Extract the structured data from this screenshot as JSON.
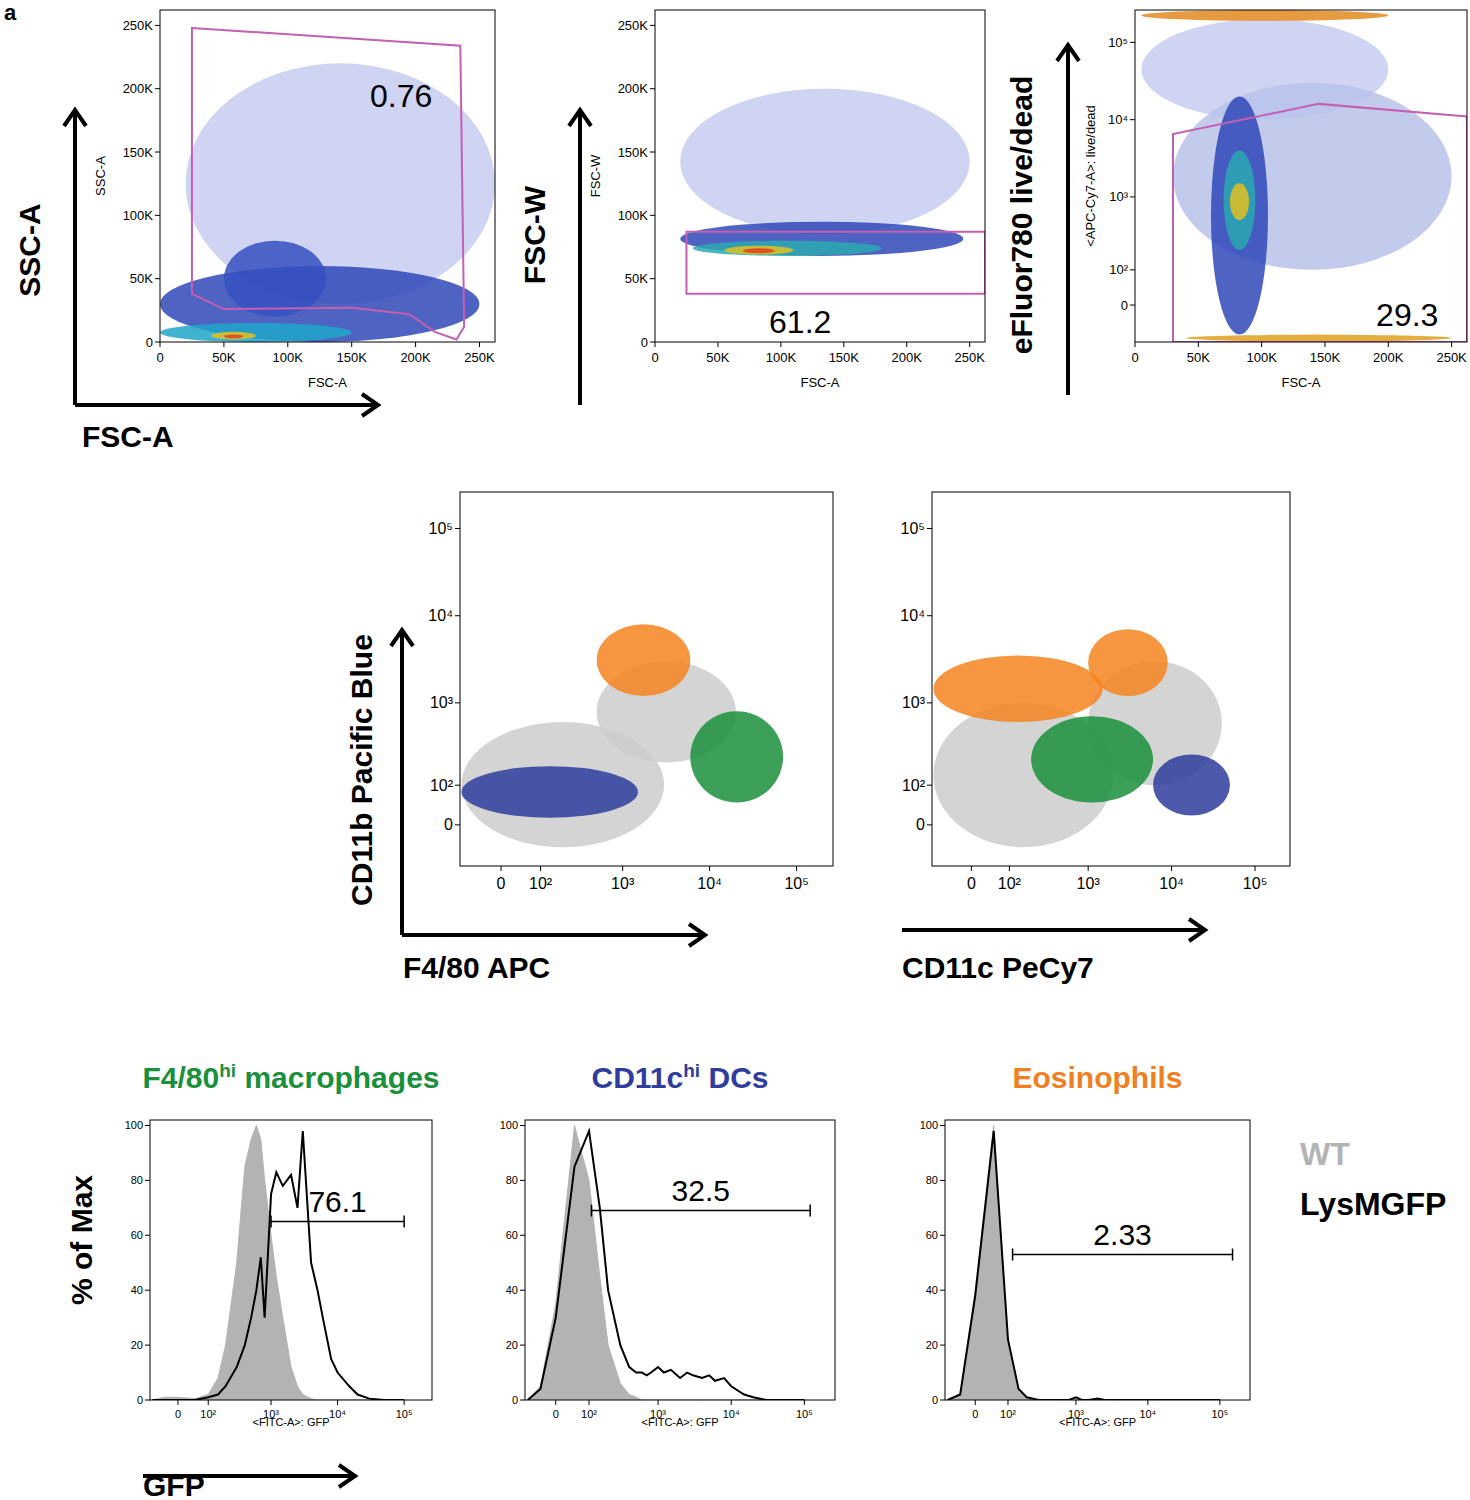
{
  "panel_label": "a",
  "chart_data": [
    {
      "type": "scatter",
      "xlabel": "FSC-A",
      "xlabel_small": "FSC-A",
      "ylabel": "SSC-A",
      "ylabel_small": "SSC-A",
      "xlim": [
        0,
        262144
      ],
      "ylim": [
        0,
        262144
      ],
      "xticks": [
        0,
        {
          "value": 50000,
          "label": "50K"
        },
        {
          "value": 100000,
          "label": "100K"
        },
        {
          "value": 150000,
          "label": "150K"
        },
        {
          "value": 200000,
          "label": "200K"
        },
        {
          "value": 250000,
          "label": "250K"
        }
      ],
      "yticks": [
        0,
        {
          "value": 50000,
          "label": "50K"
        },
        {
          "value": 100000,
          "label": "100K"
        },
        {
          "value": 150000,
          "label": "150K"
        },
        {
          "value": 200000,
          "label": "200K"
        },
        {
          "value": 250000,
          "label": "250K"
        }
      ],
      "populations": [
        {
          "x": [
            20000,
            262144
          ],
          "y": [
            30000,
            220000
          ],
          "color": "#c5cdee"
        },
        {
          "x": [
            0,
            250000
          ],
          "y": [
            0,
            60000
          ],
          "color": "#3048b8"
        },
        {
          "x": [
            50000,
            130000
          ],
          "y": [
            20000,
            80000
          ],
          "color": "#3550c0"
        },
        {
          "x": [
            0,
            150000
          ],
          "y": [
            0,
            15000
          ],
          "color": "#1fa6c9"
        },
        {
          "x": [
            40000,
            75000
          ],
          "y": [
            2000,
            8000
          ],
          "color": "#e3c21f"
        },
        {
          "x": [
            50000,
            65000
          ],
          "y": [
            3000,
            6000
          ],
          "color": "#e0401f"
        }
      ],
      "gate": [
        [
          25000,
          248000
        ],
        [
          235000,
          234000
        ],
        [
          238000,
          12000
        ],
        [
          232000,
          2000
        ],
        [
          215000,
          8000
        ],
        [
          195000,
          22000
        ],
        [
          150000,
          27000
        ],
        [
          50000,
          26000
        ],
        [
          25000,
          38000
        ]
      ],
      "gate_label": 0.76
    },
    {
      "type": "scatter",
      "xlabel_small": "FSC-A",
      "ylabel": "FSC-W",
      "ylabel_small": "FSC-W",
      "xlim": [
        0,
        262144
      ],
      "ylim": [
        0,
        262144
      ],
      "xticks": [
        0,
        {
          "value": 50000,
          "label": "50K"
        },
        {
          "value": 100000,
          "label": "100K"
        },
        {
          "value": 150000,
          "label": "150K"
        },
        {
          "value": 200000,
          "label": "200K"
        },
        {
          "value": 250000,
          "label": "250K"
        }
      ],
      "yticks": [
        0,
        {
          "value": 50000,
          "label": "50K"
        },
        {
          "value": 100000,
          "label": "100K"
        },
        {
          "value": 150000,
          "label": "150K"
        },
        {
          "value": 200000,
          "label": "200K"
        },
        {
          "value": 250000,
          "label": "250K"
        }
      ],
      "populations": [
        {
          "x": [
            20000,
            250000
          ],
          "y": [
            85000,
            200000
          ],
          "color": "#c5cdee"
        },
        {
          "x": [
            20000,
            245000
          ],
          "y": [
            68000,
            95000
          ],
          "color": "#3048b8"
        },
        {
          "x": [
            30000,
            180000
          ],
          "y": [
            68000,
            80000
          ],
          "color": "#2aa8b0"
        },
        {
          "x": [
            55000,
            110000
          ],
          "y": [
            69000,
            76000
          ],
          "color": "#e0c020"
        },
        {
          "x": [
            70000,
            95000
          ],
          "y": [
            70000,
            74000
          ],
          "color": "#e0401f"
        }
      ],
      "gate": [
        [
          25000,
          38000
        ],
        [
          262144,
          38000
        ],
        [
          262144,
          87000
        ],
        [
          25000,
          87000
        ]
      ],
      "gate_label": 61.2
    },
    {
      "type": "scatter",
      "xlabel_small": "FSC-A",
      "ylabel": "eFluor780 live/dead",
      "ylabel_small": "<APC-Cy7-A>: live/dead",
      "log": "y",
      "xlim": [
        0,
        262144
      ],
      "ylim": [
        -107,
        262144
      ],
      "xticks": [
        0,
        {
          "value": 50000,
          "label": "50K"
        },
        {
          "value": 100000,
          "label": "100K"
        },
        {
          "value": 150000,
          "label": "150K"
        },
        {
          "value": 200000,
          "label": "200K"
        },
        {
          "value": 250000,
          "label": "250K"
        }
      ],
      "yticks": [
        0,
        {
          "value": 100,
          "label": "10²"
        },
        {
          "value": 1000,
          "label": "10³"
        },
        {
          "value": 10000,
          "label": "10⁴"
        },
        {
          "value": 100000,
          "label": "10⁵"
        }
      ],
      "populations": [
        {
          "x": [
            5000,
            200000
          ],
          "y": [
            10000,
            200000
          ],
          "color": "#c5cdee"
        },
        {
          "x": [
            30000,
            250000
          ],
          "y": [
            100,
            30000
          ],
          "color": "#b8c2ea"
        },
        {
          "x": [
            60000,
            105000
          ],
          "y": [
            -80,
            20000
          ],
          "color": "#3048b8"
        },
        {
          "x": [
            70000,
            95000
          ],
          "y": [
            200,
            4000
          ],
          "color": "#2aa8b0"
        },
        {
          "x": [
            75000,
            90000
          ],
          "y": [
            500,
            1500
          ],
          "color": "#e0c020"
        },
        {
          "x": [
            5000,
            200000
          ],
          "y": [
            190000,
            262144
          ],
          "color": "#e38a20"
        },
        {
          "x": [
            40000,
            250000
          ],
          "y": [
            -105,
            -80
          ],
          "color": "#e0a020"
        }
      ],
      "gate": [
        [
          30000,
          -107
        ],
        [
          30000,
          6500
        ],
        [
          145000,
          16000
        ],
        [
          262144,
          11000
        ],
        [
          262144,
          -107
        ]
      ],
      "gate_label": 29.3
    },
    {
      "type": "scatter",
      "xlabel": "F4/80 APC",
      "ylabel": "CD11b Pacific Blue",
      "log": true,
      "xlim": [
        -105,
        262144
      ],
      "ylim": [
        -105,
        262144
      ],
      "xticks": [
        0,
        {
          "value": 100,
          "label": "10²"
        },
        {
          "value": 1000,
          "label": "10³"
        },
        {
          "value": 10000,
          "label": "10⁴"
        },
        {
          "value": 100000,
          "label": "10⁵"
        }
      ],
      "yticks": [
        0,
        {
          "value": 100,
          "label": "10²"
        },
        {
          "value": 1000,
          "label": "10³"
        },
        {
          "value": 10000,
          "label": "10⁴"
        },
        {
          "value": 100000,
          "label": "10⁵"
        }
      ],
      "populations": [
        {
          "x": [
            -100,
            3000
          ],
          "y": [
            -50,
            600
          ],
          "color": "#cccccc"
        },
        {
          "x": [
            500,
            20000
          ],
          "y": [
            200,
            3000
          ],
          "color": "#cccccc"
        },
        {
          "x": [
            -100,
            1500
          ],
          "y": [
            15,
            180
          ],
          "color": "#2e3d9e"
        },
        {
          "x": [
            6000,
            70000
          ],
          "y": [
            50,
            800
          ],
          "color": "#1a8f3c"
        },
        {
          "x": [
            500,
            6000
          ],
          "y": [
            1200,
            8000
          ],
          "color": "#f5841f"
        }
      ]
    },
    {
      "type": "scatter",
      "xlabel": "CD11c PeCy7",
      "log": true,
      "xlim": [
        -105,
        262144
      ],
      "ylim": [
        -105,
        262144
      ],
      "xticks": [
        0,
        {
          "value": 100,
          "label": "10²"
        },
        {
          "value": 1000,
          "label": "10³"
        },
        {
          "value": 10000,
          "label": "10⁴"
        },
        {
          "value": 100000,
          "label": "10⁵"
        }
      ],
      "yticks": [
        0,
        {
          "value": 100,
          "label": "10²"
        },
        {
          "value": 1000,
          "label": "10³"
        },
        {
          "value": 10000,
          "label": "10⁴"
        },
        {
          "value": 100000,
          "label": "10⁵"
        }
      ],
      "populations": [
        {
          "x": [
            -100,
            2000
          ],
          "y": [
            -50,
            1000
          ],
          "color": "#cccccc"
        },
        {
          "x": [
            1000,
            40000
          ],
          "y": [
            100,
            3000
          ],
          "color": "#cccccc"
        },
        {
          "x": [
            -100,
            1500
          ],
          "y": [
            600,
            3500
          ],
          "color": "#f5841f"
        },
        {
          "x": [
            1000,
            9000
          ],
          "y": [
            1200,
            7000
          ],
          "color": "#f5841f"
        },
        {
          "x": [
            200,
            6000
          ],
          "y": [
            50,
            700
          ],
          "color": "#1a8f3c"
        },
        {
          "x": [
            6000,
            50000
          ],
          "y": [
            20,
            250
          ],
          "color": "#2e3d9e"
        }
      ]
    },
    {
      "type": "line",
      "title": "F4/80",
      "title_sup": "hi",
      "title_rest": " macrophages",
      "color": "#1a8f3c",
      "xlabel": "GFP",
      "xlabel_small": "<FITC-A>: GFP",
      "ylabel": "% of Max",
      "log": "x",
      "xlim": [
        -90,
        262144
      ],
      "ylim": [
        0,
        102
      ],
      "xticks": [
        0,
        {
          "value": 100,
          "label": "10²"
        },
        {
          "value": 1000,
          "label": "10³"
        },
        {
          "value": 10000,
          "label": "10⁴"
        },
        {
          "value": 100000,
          "label": "10⁵"
        }
      ],
      "yticks": [
        0,
        20,
        40,
        60,
        80,
        100
      ],
      "x": [
        -80,
        -40,
        0,
        50,
        100,
        150,
        200,
        300,
        400,
        500,
        600,
        700,
        800,
        1000,
        1200,
        1500,
        2000,
        2500,
        3000,
        4000,
        5000,
        6000,
        8000,
        10000,
        15000,
        20000,
        30000,
        50000,
        100000
      ],
      "series": [
        {
          "name": "WT",
          "type": "area",
          "color": "#b3b3b3",
          "values": [
            0,
            1,
            1,
            0.5,
            2,
            8,
            20,
            50,
            85,
            95,
            100,
            95,
            80,
            60,
            45,
            30,
            12,
            5,
            2,
            0.5,
            0,
            0,
            0,
            0,
            0,
            0,
            0,
            0,
            0
          ]
        },
        {
          "name": "LysMGFP",
          "type": "line",
          "color": "#000000",
          "values": [
            0,
            0,
            0,
            0,
            1,
            2,
            5,
            12,
            20,
            30,
            40,
            52,
            30,
            75,
            83,
            78,
            82,
            70,
            98,
            50,
            40,
            30,
            15,
            10,
            5,
            2,
            0.5,
            0,
            0
          ]
        }
      ],
      "gate": {
        "range": [
          1000,
          100000
        ],
        "level": 65
      },
      "gate_label": 76.1
    },
    {
      "type": "line",
      "title": "CD11c",
      "title_sup": "hi",
      "title_rest": " DCs",
      "color": "#2e3d9e",
      "xlabel_small": "<FITC-A>: GFP",
      "log": "x",
      "xlim": [
        -90,
        262144
      ],
      "ylim": [
        0,
        102
      ],
      "xticks": [
        0,
        {
          "value": 100,
          "label": "10²"
        },
        {
          "value": 1000,
          "label": "10³"
        },
        {
          "value": 10000,
          "label": "10⁴"
        },
        {
          "value": 100000,
          "label": "10⁵"
        }
      ],
      "yticks": [
        0,
        20,
        40,
        60,
        80,
        100
      ],
      "x": [
        -80,
        -40,
        0,
        50,
        100,
        150,
        200,
        300,
        400,
        500,
        600,
        700,
        800,
        1000,
        1200,
        1500,
        2000,
        2500,
        3000,
        4000,
        5000,
        6000,
        8000,
        10000,
        15000,
        20000,
        30000,
        50000,
        100000
      ],
      "series": [
        {
          "name": "WT",
          "type": "area",
          "color": "#b3b3b3",
          "values": [
            0,
            5,
            35,
            100,
            80,
            45,
            20,
            6,
            2,
            1,
            0,
            0,
            0,
            0,
            0,
            0,
            0,
            0,
            0,
            0,
            0,
            0,
            0,
            0,
            0,
            0,
            0,
            0,
            0
          ]
        },
        {
          "name": "LysMGFP",
          "type": "line",
          "color": "#000000",
          "values": [
            0,
            4,
            30,
            85,
            98,
            70,
            40,
            20,
            12,
            10,
            10,
            9,
            10,
            12,
            10,
            11,
            8,
            10,
            9,
            8,
            9,
            7,
            8,
            5,
            2,
            1,
            0,
            0,
            0
          ]
        }
      ],
      "gate": {
        "range": [
          110,
          120000
        ],
        "level": 69
      },
      "gate_label": 32.5
    },
    {
      "type": "line",
      "title": "Eosinophils",
      "color": "#f07f22",
      "xlabel_small": "<FITC-A>: GFP",
      "log": "x",
      "legend": "right",
      "xlim": [
        -90,
        262144
      ],
      "ylim": [
        0,
        102
      ],
      "xticks": [
        0,
        {
          "value": 100,
          "label": "10²"
        },
        {
          "value": 1000,
          "label": "10³"
        },
        {
          "value": 10000,
          "label": "10⁴"
        },
        {
          "value": 100000,
          "label": "10⁵"
        }
      ],
      "yticks": [
        0,
        20,
        40,
        60,
        80,
        100
      ],
      "x": [
        -80,
        -40,
        0,
        50,
        100,
        150,
        200,
        300,
        400,
        500,
        600,
        700,
        800,
        1000,
        1200,
        1500,
        2000,
        2500,
        3000,
        4000,
        5000,
        6000,
        8000,
        10000,
        15000,
        20000,
        30000,
        50000,
        100000
      ],
      "series": [
        {
          "name": "WT",
          "type": "area",
          "color": "#b3b3b3",
          "values": [
            0,
            2,
            40,
            100,
            20,
            3,
            1,
            0,
            0,
            0,
            0,
            0,
            0,
            0,
            0,
            0,
            0,
            0,
            0,
            0,
            0,
            0,
            0,
            0,
            0,
            0,
            0,
            0,
            0
          ]
        },
        {
          "name": "LysMGFP",
          "type": "line",
          "color": "#000000",
          "values": [
            0,
            2,
            38,
            98,
            22,
            4,
            1,
            0,
            0,
            0,
            0,
            0,
            0,
            1,
            0,
            0,
            0.5,
            0,
            0,
            0,
            0,
            0,
            0,
            0,
            0,
            0,
            0,
            0,
            0
          ]
        }
      ],
      "gate": {
        "range": [
          120,
          150000
        ],
        "level": 53
      },
      "gate_label": 2.33
    }
  ]
}
